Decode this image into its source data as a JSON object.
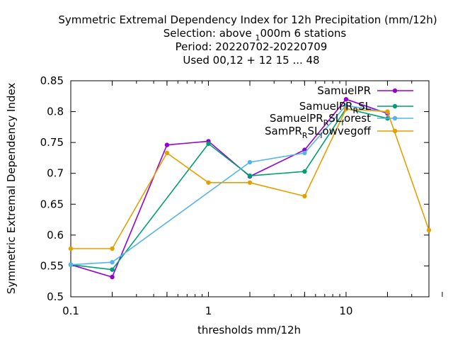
{
  "chart_data": {
    "type": "line",
    "title_lines": [
      "Symmetric Extremal Dependency Index  for 12h Precipitation (mm/12h)",
      "Selection: above ",
      "Period: 20220702-20220709",
      "Used  00,12  + 12 15 ... 48"
    ],
    "title_selection": {
      "sub": "1",
      "rest": "000m      6 stations"
    },
    "xlabel": "thresholds mm/12h",
    "ylabel": "Symmetric Extremal Dependency Index",
    "x_scale": "log",
    "xlim": [
      0.1,
      40
    ],
    "ylim": [
      0.5,
      0.85
    ],
    "x_ticks": [
      {
        "value": 0.1,
        "label": "0.1"
      },
      {
        "value": 1,
        "label": "1"
      },
      {
        "value": 10,
        "label": "10"
      }
    ],
    "x_minor_ticks": [
      0.2,
      0.5,
      2,
      5,
      20
    ],
    "y_ticks": [
      {
        "value": 0.5,
        "label": "0.5"
      },
      {
        "value": 0.55,
        "label": "0.55"
      },
      {
        "value": 0.6,
        "label": "0.6"
      },
      {
        "value": 0.65,
        "label": "0.65"
      },
      {
        "value": 0.7,
        "label": "0.7"
      },
      {
        "value": 0.75,
        "label": "0.75"
      },
      {
        "value": 0.8,
        "label": "0.8"
      },
      {
        "value": 0.85,
        "label": "0.85"
      }
    ],
    "grid": false,
    "legend_position": "top-right",
    "series": [
      {
        "legend": {
          "main": "SamuelPR",
          "sub": "",
          "rest": ""
        },
        "color": "#9400d3",
        "x": [
          0.1,
          0.2,
          0.5,
          1,
          2,
          5,
          10,
          20
        ],
        "y": [
          0.552,
          0.532,
          0.746,
          0.752,
          0.695,
          0.738,
          0.82,
          0.797
        ]
      },
      {
        "legend": {
          "main": "SamuelPR",
          "sub": "R",
          "rest": "SL"
        },
        "color": "#009e73",
        "x": [
          0.1,
          0.2,
          1,
          2,
          5,
          10,
          20
        ],
        "y": [
          0.552,
          0.544,
          0.748,
          0.696,
          0.703,
          0.805,
          0.789
        ]
      },
      {
        "legend": {
          "main": "SamuelPR",
          "sub": "R",
          "rest": "SL",
          "sub2": "f",
          "rest2": "orest"
        },
        "color": "#56b4e9",
        "x": [
          0.1,
          0.2,
          2,
          5,
          10,
          20
        ],
        "y": [
          0.552,
          0.556,
          0.718,
          0.733,
          0.81,
          0.799
        ]
      },
      {
        "legend": {
          "main": "SamPR",
          "sub": "R",
          "rest": "SL",
          "sub2": "l",
          "rest2": "owvegoff"
        },
        "color": "#e69f00",
        "x": [
          0.1,
          0.2,
          0.5,
          1,
          2,
          5,
          10,
          20,
          40
        ],
        "y": [
          0.578,
          0.578,
          0.733,
          0.685,
          0.685,
          0.663,
          0.804,
          0.8,
          0.608
        ]
      }
    ]
  }
}
